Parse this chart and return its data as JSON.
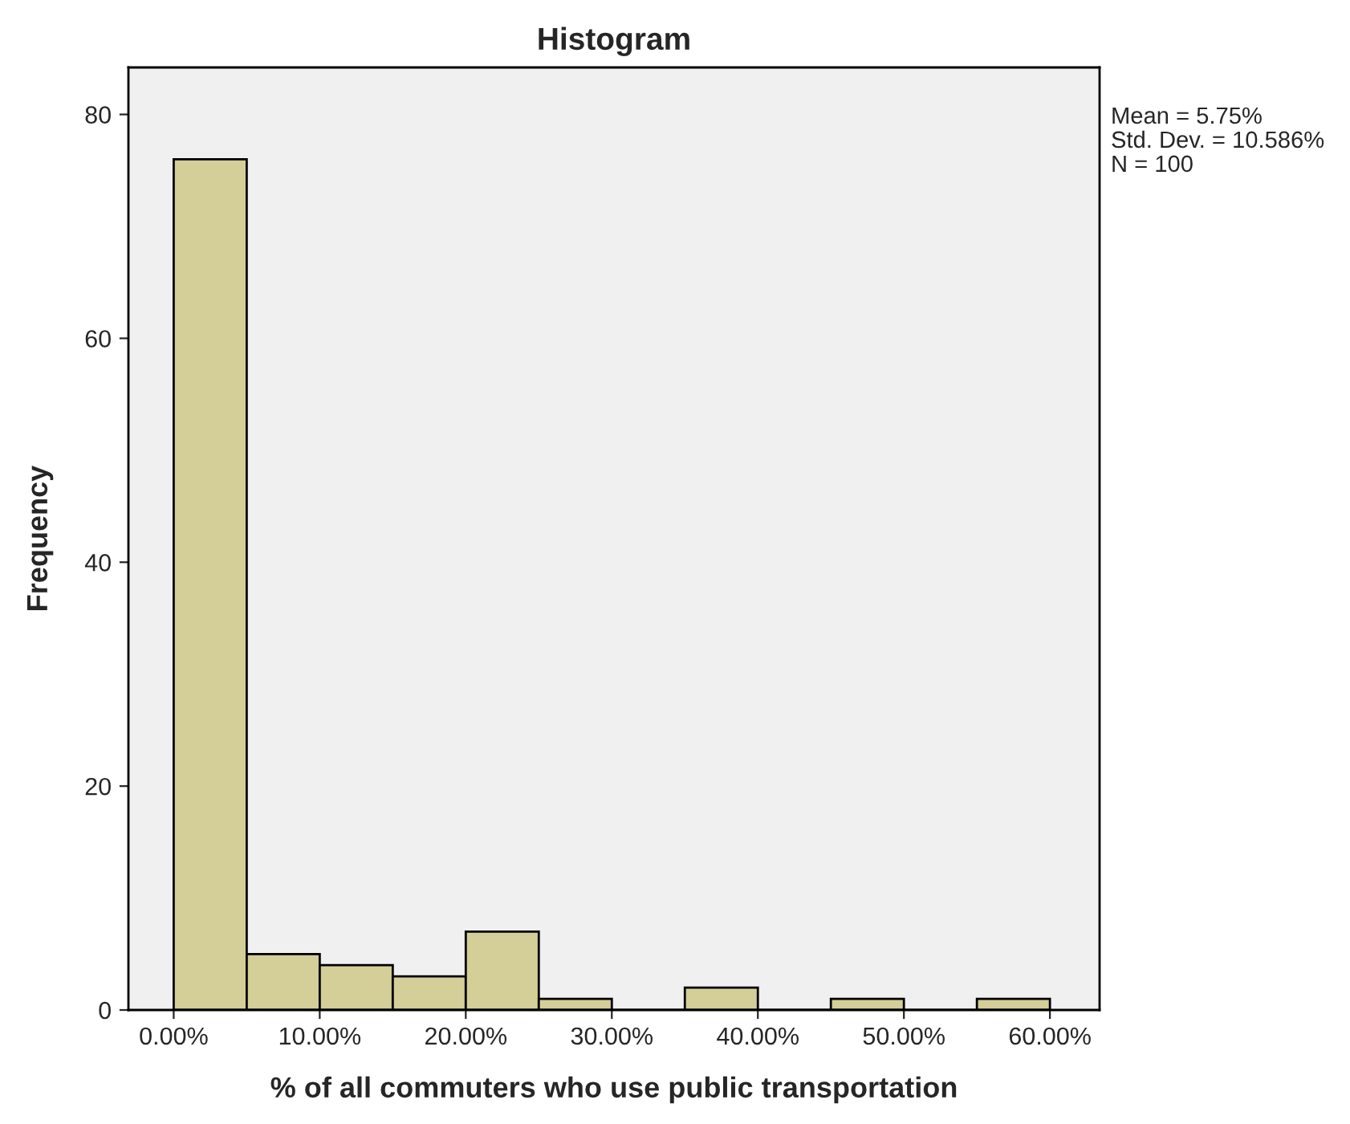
{
  "chart_data": {
    "type": "histogram",
    "title": "Histogram",
    "xlabel": "% of all commuters who use public transportation",
    "ylabel": "Frequency",
    "bins": [
      0,
      5,
      10,
      15,
      20,
      25,
      30,
      35,
      40,
      45,
      50,
      55,
      60
    ],
    "values": [
      76,
      5,
      4,
      3,
      7,
      1,
      0,
      2,
      0,
      1,
      0,
      1
    ],
    "color": "#d4cf98",
    "xlim": [
      -3.1,
      63.4
    ],
    "ylim": [
      0,
      84.2
    ],
    "xticks": [
      {
        "value": 0,
        "label": "0.00%"
      },
      {
        "value": 10,
        "label": "10.00%"
      },
      {
        "value": 20,
        "label": "20.00%"
      },
      {
        "value": 30,
        "label": "30.00%"
      },
      {
        "value": 40,
        "label": "40.00%"
      },
      {
        "value": 50,
        "label": "50.00%"
      },
      {
        "value": 60,
        "label": "60.00%"
      }
    ],
    "yticks": [
      0,
      20,
      40,
      60,
      80
    ],
    "grid": false,
    "annotations": [
      "Mean = 5.75%",
      "Std. Dev. = 10.586%",
      "N = 100"
    ]
  }
}
